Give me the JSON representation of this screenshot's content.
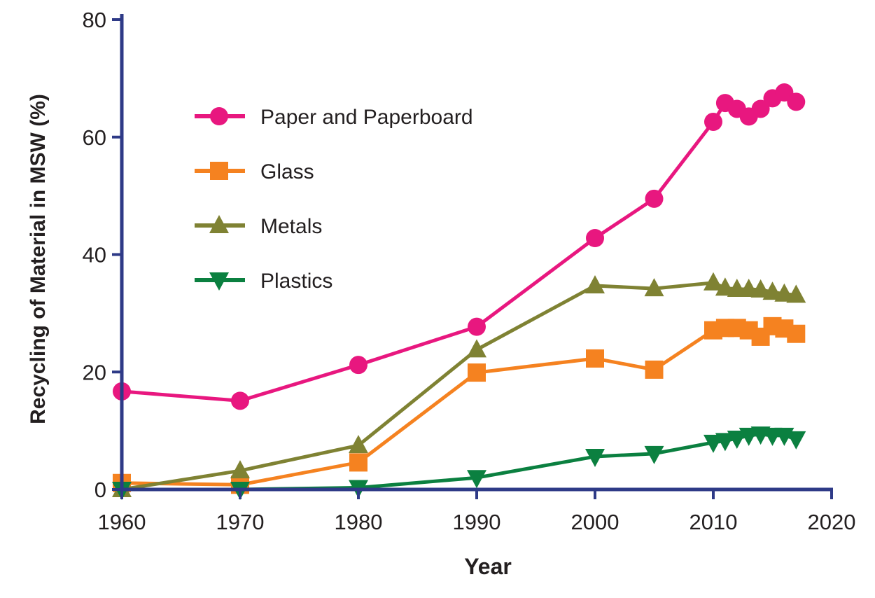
{
  "chart_data": {
    "type": "line",
    "title": "",
    "xlabel": "Year",
    "ylabel": "Recycling of Material in MSW (%)",
    "xlim": [
      1960,
      2020
    ],
    "ylim": [
      0,
      80
    ],
    "xticks": [
      1960,
      1970,
      1980,
      1990,
      2000,
      2010,
      2020
    ],
    "yticks": [
      0,
      20,
      40,
      60,
      80
    ],
    "grid": false,
    "legend_position": "top-left",
    "axis_color": "#2e3a87",
    "x": [
      1960,
      1970,
      1980,
      1990,
      2000,
      2005,
      2010,
      2011,
      2012,
      2013,
      2014,
      2015,
      2016,
      2017
    ],
    "series": [
      {
        "name": "Paper and Paperboard",
        "marker": "circle",
        "color": "#e8177f",
        "values": [
          16.7,
          15.1,
          21.2,
          27.7,
          42.8,
          49.5,
          62.6,
          65.8,
          64.8,
          63.5,
          64.8,
          66.6,
          67.6,
          66.0
        ]
      },
      {
        "name": "Glass",
        "marker": "square",
        "color": "#f58220",
        "values": [
          1.1,
          0.8,
          4.6,
          19.9,
          22.3,
          20.4,
          27.1,
          27.5,
          27.5,
          27.1,
          26.0,
          27.8,
          27.4,
          26.5
        ]
      },
      {
        "name": "Metals",
        "marker": "triangle-up",
        "color": "#7f8233",
        "values": [
          0.0,
          3.2,
          7.5,
          23.8,
          34.7,
          34.2,
          35.2,
          34.3,
          34.1,
          34.1,
          34.0,
          33.6,
          33.3,
          33.1
        ]
      },
      {
        "name": "Plastics",
        "marker": "triangle-down",
        "color": "#0b8040",
        "values": [
          0.0,
          0.0,
          0.3,
          2.0,
          5.6,
          6.1,
          8.0,
          8.3,
          8.7,
          9.2,
          9.4,
          9.2,
          9.2,
          8.6
        ]
      }
    ]
  }
}
